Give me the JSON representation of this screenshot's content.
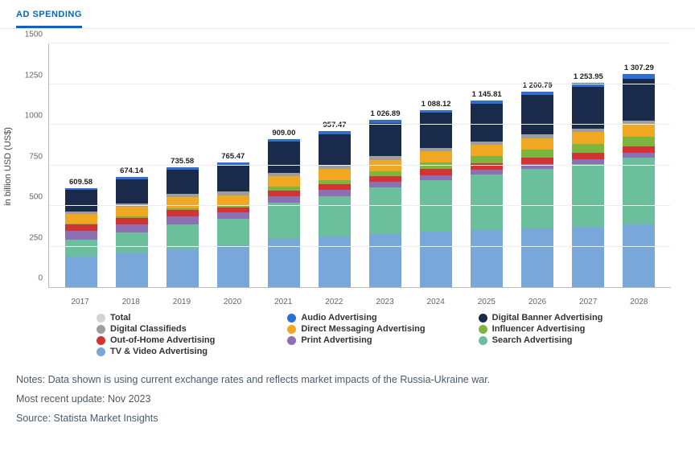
{
  "tab": {
    "label": "AD SPENDING"
  },
  "chart": {
    "type": "bar-stacked",
    "y_axis_label": "in billion USD (US$)",
    "ylim": [
      0,
      1500
    ],
    "ytick_step": 250,
    "yticks": [
      "0",
      "250",
      "500",
      "750",
      "1000",
      "1250",
      "1500"
    ],
    "categories": [
      "2017",
      "2018",
      "2019",
      "2020",
      "2021",
      "2022",
      "2023",
      "2024",
      "2025",
      "2026",
      "2027",
      "2028"
    ],
    "totals": [
      "609.58",
      "674.14",
      "735.58",
      "765.47",
      "909.00",
      "957.47",
      "1 026.89",
      "1 088.12",
      "1 145.81",
      "1 200.79",
      "1 253.95",
      "1 307.29"
    ],
    "series_order": [
      "tv",
      "search",
      "print",
      "ooh",
      "influencer",
      "direct",
      "classifieds",
      "banner",
      "audio"
    ],
    "series": {
      "tv": {
        "label": "TV & Video Advertising",
        "color": "#7aa7d9",
        "values": [
          190,
          210,
          230,
          255,
          295,
          310,
          325,
          340,
          350,
          360,
          370,
          385
        ]
      },
      "search": {
        "label": "Search Advertising",
        "color": "#6bbf9c",
        "values": [
          100,
          125,
          155,
          165,
          225,
          250,
          285,
          315,
          340,
          365,
          385,
          410
        ]
      },
      "print": {
        "label": "Print Advertising",
        "color": "#8d6fb3",
        "values": [
          55,
          52,
          50,
          40,
          38,
          36,
          35,
          33,
          32,
          31,
          30,
          29
        ]
      },
      "ooh": {
        "label": "Out-of-Home Advertising",
        "color": "#d23434",
        "values": [
          38,
          38,
          38,
          30,
          35,
          36,
          37,
          38,
          39,
          40,
          41,
          42
        ]
      },
      "influencer": {
        "label": "Influencer Advertising",
        "color": "#7eb53e",
        "values": [
          5,
          8,
          12,
          15,
          22,
          26,
          31,
          37,
          42,
          48,
          53,
          58
        ]
      },
      "direct": {
        "label": "Direct Messaging Advertising",
        "color": "#f0a823",
        "values": [
          60,
          63,
          66,
          60,
          65,
          66,
          68,
          69,
          70,
          71,
          72,
          73
        ]
      },
      "classifieds": {
        "label": "Digital Classifieds",
        "color": "#9e9e9e",
        "values": [
          18,
          19,
          20,
          20,
          21,
          21,
          22,
          22,
          22,
          23,
          23,
          23
        ]
      },
      "banner": {
        "label": "Digital Banner Advertising",
        "color": "#1a2a4a",
        "values": [
          130,
          145,
          150,
          165,
          190,
          194,
          205,
          215,
          230,
          240,
          255,
          260
        ]
      },
      "audio": {
        "label": "Audio Advertising",
        "color": "#2f6fd1",
        "values": [
          13.58,
          14.14,
          14.58,
          15.47,
          18,
          18.47,
          18.89,
          19.12,
          20.81,
          22.79,
          24.95,
          27.29
        ]
      }
    },
    "legend_order": [
      {
        "key": "total",
        "label": "Total",
        "color": "#d4d4d4"
      },
      {
        "key": "audio",
        "label": "Audio Advertising",
        "color": "#2f6fd1"
      },
      {
        "key": "banner",
        "label": "Digital Banner Advertising",
        "color": "#1a2a4a"
      },
      {
        "key": "classifieds",
        "label": "Digital Classifieds",
        "color": "#9e9e9e"
      },
      {
        "key": "direct",
        "label": "Direct Messaging Advertising",
        "color": "#f0a823"
      },
      {
        "key": "influencer",
        "label": "Influencer Advertising",
        "color": "#7eb53e"
      },
      {
        "key": "ooh",
        "label": "Out-of-Home Advertising",
        "color": "#d23434"
      },
      {
        "key": "print",
        "label": "Print Advertising",
        "color": "#8d6fb3"
      },
      {
        "key": "search",
        "label": "Search Advertising",
        "color": "#6bbf9c"
      },
      {
        "key": "tv",
        "label": "TV & Video Advertising",
        "color": "#7aa7d9"
      }
    ],
    "background_color": "#ffffff",
    "grid_color": "#eeeeee",
    "label_fontsize": 11,
    "tick_fontsize": 10,
    "total_fontsize": 9.5
  },
  "notes": {
    "line1": "Notes: Data shown is using current exchange rates and reflects market impacts of the Russia-Ukraine war.",
    "line2": "Most recent update: Nov 2023",
    "line3": "Source: Statista Market Insights"
  }
}
